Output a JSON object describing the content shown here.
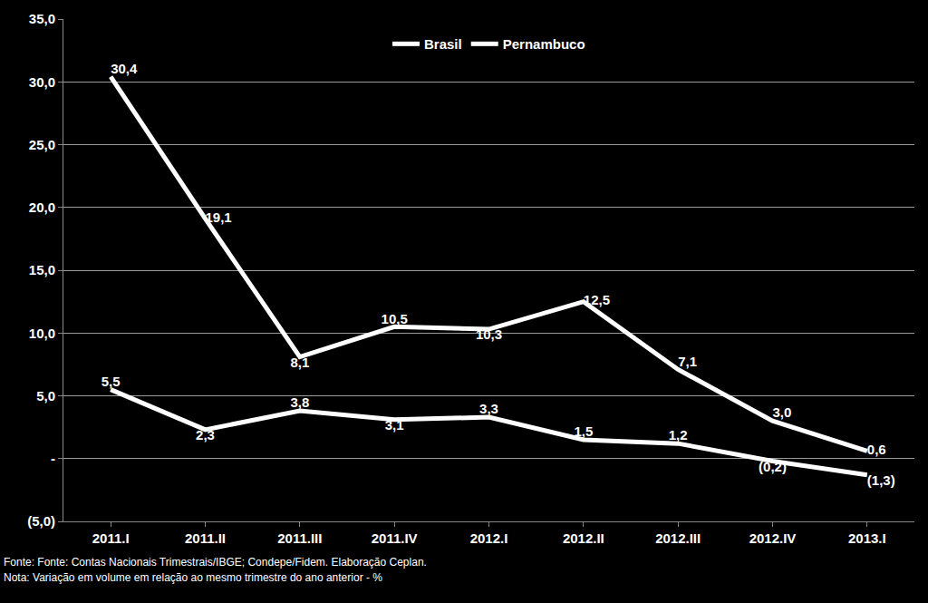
{
  "chart_data": {
    "type": "line",
    "categories": [
      "2011.I",
      "2011.II",
      "2011.III",
      "2011.IV",
      "2012.I",
      "2012.II",
      "2012.III",
      "2012.IV",
      "2013.I"
    ],
    "series": [
      {
        "name": "Brasil",
        "color": "#ffffff",
        "values": [
          5.5,
          2.3,
          3.8,
          3.1,
          3.3,
          1.5,
          1.2,
          -0.2,
          -1.3
        ],
        "value_labels": [
          "5,5",
          "2,3",
          "3,8",
          "3,1",
          "3,3",
          "1,5",
          "1,2",
          "(0,2)",
          "(1,3)"
        ]
      },
      {
        "name": "Pernambuco",
        "color": "#ffffff",
        "values": [
          30.4,
          19.1,
          8.1,
          10.5,
          10.3,
          12.5,
          7.1,
          3.0,
          0.6
        ],
        "value_labels": [
          "30,4",
          "19,1",
          "8,1",
          "10,5",
          "10,3",
          "12,5",
          "7,1",
          "3,0",
          "0,6"
        ]
      }
    ],
    "ylim": [
      -5,
      35
    ],
    "yticks": [
      {
        "value": -5,
        "label": "(5,0)"
      },
      {
        "value": 0,
        "label": "-"
      },
      {
        "value": 5,
        "label": "5,0"
      },
      {
        "value": 10,
        "label": "10,0"
      },
      {
        "value": 15,
        "label": "15,0"
      },
      {
        "value": 20,
        "label": "20,0"
      },
      {
        "value": 25,
        "label": "25,0"
      },
      {
        "value": 30,
        "label": "30,0"
      },
      {
        "value": 35,
        "label": "35,0"
      }
    ],
    "grid": true,
    "legend": "top",
    "data_labels": true,
    "annotations": [
      "Fonte: Fonte: Contas Nacionais Trimestrais/IBGE; Condepe/Fidem. Elaboração Ceplan.",
      "Nota: Variação em volume em relação ao mesmo trimestre do ano anterior - %"
    ]
  }
}
